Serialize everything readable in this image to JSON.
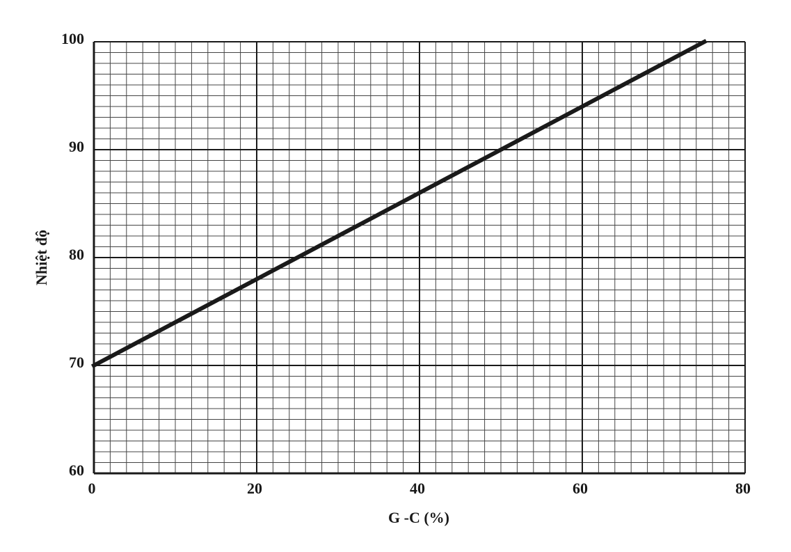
{
  "chart_data": {
    "type": "line",
    "x_label": "G -C (%)",
    "y_label": "Nhiệt độ",
    "x": [
      0,
      75
    ],
    "series": [
      {
        "name": "Nhiệt độ",
        "color": "#1a1a1a",
        "values": [
          70,
          100
        ]
      }
    ],
    "xlim": [
      0,
      80
    ],
    "xticks": [
      0,
      20,
      40,
      60,
      80
    ],
    "ylim": [
      60,
      100
    ],
    "yticks": [
      60,
      70,
      80,
      90,
      100
    ],
    "grid": true
  }
}
